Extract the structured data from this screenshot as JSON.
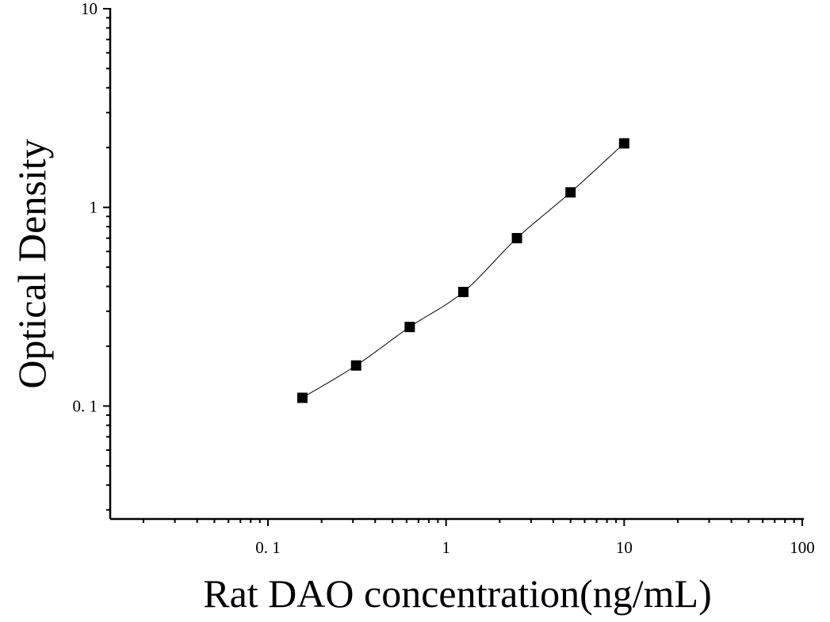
{
  "chart_data": {
    "type": "scatter",
    "xlabel": "Rat DAO concentration(ng/mL)",
    "ylabel": "Optical Density",
    "x_scale": "log",
    "y_scale": "log",
    "xlim": [
      0.013,
      100
    ],
    "ylim": [
      0.027,
      10
    ],
    "x_tick_labels": [
      {
        "value": 0.1,
        "label": "0. 1"
      },
      {
        "value": 1,
        "label": "1"
      },
      {
        "value": 10,
        "label": "10"
      },
      {
        "value": 100,
        "label": "100"
      }
    ],
    "y_tick_labels": [
      {
        "value": 0.1,
        "label": "0. 1"
      },
      {
        "value": 1,
        "label": "1"
      },
      {
        "value": 10,
        "label": "10"
      }
    ],
    "series": [
      {
        "x": [
          0.156,
          0.3125,
          0.625,
          1.25,
          2.5,
          5,
          10
        ],
        "y": [
          0.11,
          0.16,
          0.25,
          0.375,
          0.7,
          1.19,
          2.1
        ],
        "marker": "square",
        "color": "#000000",
        "fit_curve": true
      }
    ],
    "grid": false
  }
}
